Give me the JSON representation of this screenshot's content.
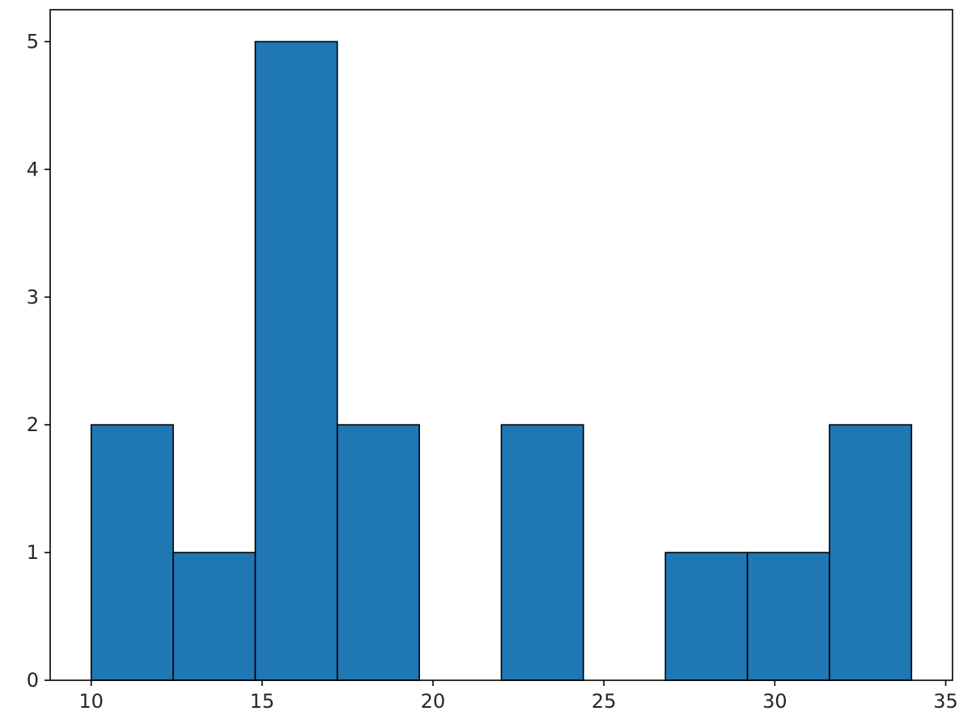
{
  "chart_data": {
    "type": "bar",
    "subtype": "histogram",
    "title": "",
    "xlabel": "",
    "ylabel": "",
    "bin_edges": [
      10.0,
      12.4,
      14.8,
      17.2,
      19.6,
      22.0,
      24.4,
      26.8,
      29.2,
      31.6,
      34.0
    ],
    "values": [
      2,
      1,
      5,
      2,
      0,
      2,
      0,
      1,
      1,
      2
    ],
    "xlim": [
      8.8,
      35.2
    ],
    "ylim": [
      0,
      5.25
    ],
    "xticks": [
      10,
      15,
      20,
      25,
      30,
      35
    ],
    "yticks": [
      0,
      1,
      2,
      3,
      4,
      5
    ],
    "grid": false,
    "bar_color": "#1f77b4",
    "edge_color": "#000000"
  }
}
